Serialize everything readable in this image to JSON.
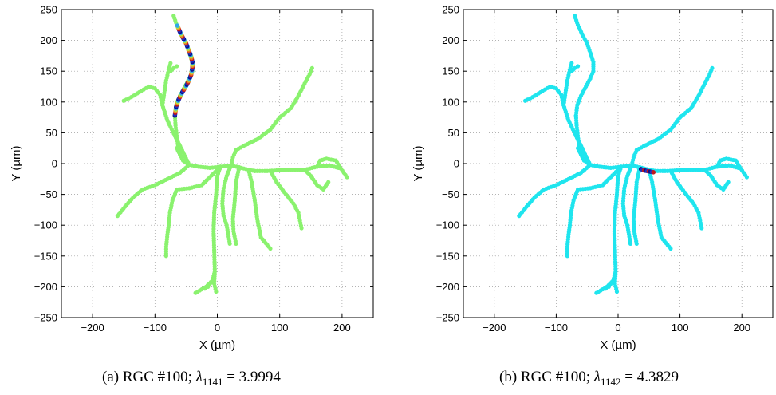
{
  "chart_data": [
    {
      "type": "scatter",
      "xlabel": "X (µm)",
      "ylabel": "Y (µm)",
      "xlim": [
        -250,
        250
      ],
      "ylim": [
        -250,
        250
      ],
      "xticks": [
        -200,
        -100,
        0,
        100,
        200
      ],
      "yticks": [
        -250,
        -200,
        -150,
        -100,
        -50,
        0,
        50,
        100,
        150,
        200,
        250
      ],
      "grid": true,
      "base_color": "#8af26e",
      "highlight_colors": [
        "#0d0d8a",
        "#1e2ec0",
        "#c01a1a",
        "#e8772a",
        "#b8e23a",
        "#2ea8e8"
      ],
      "caption": {
        "prefix": "(a)  RGC #100; ",
        "lambda": "λ",
        "sub": "1141",
        "rest": " = 3.9994"
      }
    },
    {
      "type": "scatter",
      "xlabel": "X (µm)",
      "ylabel": "Y (µm)",
      "xlim": [
        -250,
        250
      ],
      "ylim": [
        -250,
        250
      ],
      "xticks": [
        -200,
        -100,
        0,
        100,
        200
      ],
      "yticks": [
        -250,
        -200,
        -150,
        -100,
        -50,
        0,
        50,
        100,
        150,
        200,
        250
      ],
      "grid": true,
      "base_color": "#1fe5ee",
      "highlight_colors": [
        "#0d0d8a",
        "#1e2ec0",
        "#c01a1a"
      ],
      "caption": {
        "prefix": "(b)  RGC #100; ",
        "lambda": "λ",
        "sub": "1142",
        "rest": " = 4.3829"
      }
    }
  ],
  "neuron": {
    "branches": [
      [
        [
          -45,
          -2
        ],
        [
          -30,
          -5
        ],
        [
          -12,
          -7
        ],
        [
          5,
          -5
        ],
        [
          22,
          -3
        ],
        [
          35,
          -6
        ],
        [
          50,
          -10
        ],
        [
          60,
          -12
        ]
      ],
      [
        [
          -45,
          -2
        ],
        [
          -60,
          -15
        ],
        [
          -80,
          -25
        ],
        [
          -100,
          -35
        ],
        [
          -120,
          -42
        ],
        [
          -135,
          -55
        ],
        [
          -148,
          -70
        ],
        [
          -160,
          -85
        ]
      ],
      [
        [
          -45,
          -2
        ],
        [
          -55,
          5
        ],
        [
          -60,
          15
        ],
        [
          -63,
          28
        ],
        [
          -65,
          45
        ],
        [
          -67,
          62
        ],
        [
          -68,
          78
        ]
      ],
      [
        [
          -68,
          78
        ],
        [
          -66,
          95
        ],
        [
          -60,
          110
        ],
        [
          -52,
          125
        ],
        [
          -45,
          138
        ],
        [
          -40,
          150
        ],
        [
          -40,
          165
        ],
        [
          -45,
          180
        ],
        [
          -50,
          195
        ],
        [
          -58,
          210
        ],
        [
          -65,
          225
        ],
        [
          -70,
          240
        ]
      ],
      [
        [
          -45,
          -2
        ],
        [
          -52,
          12
        ],
        [
          -58,
          25
        ],
        [
          -68,
          45
        ],
        [
          -80,
          70
        ],
        [
          -88,
          95
        ],
        [
          -92,
          112
        ],
        [
          -100,
          122
        ],
        [
          -110,
          125
        ],
        [
          -122,
          118
        ],
        [
          -138,
          108
        ],
        [
          -150,
          102
        ]
      ],
      [
        [
          -88,
          95
        ],
        [
          -85,
          115
        ],
        [
          -82,
          135
        ],
        [
          -78,
          152
        ],
        [
          -75,
          163
        ]
      ],
      [
        [
          -78,
          152
        ],
        [
          -75,
          150
        ],
        [
          -70,
          155
        ],
        [
          -65,
          158
        ]
      ],
      [
        [
          -60,
          15
        ],
        [
          -65,
          25
        ]
      ],
      [
        [
          22,
          -3
        ],
        [
          25,
          10
        ],
        [
          30,
          22
        ],
        [
          45,
          30
        ],
        [
          65,
          40
        ],
        [
          85,
          55
        ],
        [
          100,
          75
        ],
        [
          118,
          90
        ],
        [
          130,
          110
        ],
        [
          140,
          130
        ],
        [
          148,
          145
        ],
        [
          152,
          155
        ]
      ],
      [
        [
          22,
          -3
        ],
        [
          15,
          -20
        ],
        [
          10,
          -40
        ],
        [
          8,
          -65
        ],
        [
          10,
          -85
        ],
        [
          15,
          -100
        ],
        [
          20,
          -130
        ]
      ],
      [
        [
          5,
          -5
        ],
        [
          -12,
          -22
        ],
        [
          -25,
          -35
        ],
        [
          -45,
          -40
        ],
        [
          -65,
          -42
        ],
        [
          -72,
          -60
        ],
        [
          -76,
          -80
        ],
        [
          -78,
          -100
        ],
        [
          -80,
          -115
        ],
        [
          -82,
          -135
        ],
        [
          -82,
          -150
        ]
      ],
      [
        [
          5,
          -5
        ],
        [
          0,
          -20
        ],
        [
          -2,
          -50
        ],
        [
          -5,
          -80
        ],
        [
          -6,
          -110
        ],
        [
          -5,
          -140
        ],
        [
          -4,
          -175
        ],
        [
          -8,
          -190
        ],
        [
          -15,
          -200
        ],
        [
          -20,
          -203
        ]
      ],
      [
        [
          -4,
          -175
        ],
        [
          -5,
          -195
        ],
        [
          -2,
          -208
        ]
      ],
      [
        [
          -8,
          -190
        ],
        [
          -18,
          -200
        ],
        [
          -35,
          -210
        ]
      ],
      [
        [
          35,
          -6
        ],
        [
          30,
          -30
        ],
        [
          28,
          -60
        ],
        [
          25,
          -90
        ],
        [
          26,
          -110
        ],
        [
          30,
          -130
        ]
      ],
      [
        [
          50,
          -10
        ],
        [
          55,
          -30
        ],
        [
          60,
          -60
        ],
        [
          64,
          -90
        ],
        [
          70,
          -120
        ],
        [
          85,
          -138
        ]
      ],
      [
        [
          60,
          -12
        ],
        [
          80,
          -12
        ],
        [
          110,
          -10
        ],
        [
          140,
          -10
        ],
        [
          160,
          -5
        ],
        [
          180,
          -3
        ],
        [
          198,
          -8
        ],
        [
          208,
          -22
        ]
      ],
      [
        [
          140,
          -10
        ],
        [
          150,
          -20
        ],
        [
          160,
          -35
        ],
        [
          170,
          -42
        ],
        [
          178,
          -30
        ]
      ],
      [
        [
          85,
          -12
        ],
        [
          95,
          -30
        ],
        [
          110,
          -50
        ],
        [
          122,
          -65
        ],
        [
          130,
          -80
        ],
        [
          135,
          -105
        ]
      ],
      [
        [
          160,
          -5
        ],
        [
          165,
          5
        ],
        [
          175,
          8
        ],
        [
          190,
          5
        ],
        [
          198,
          -8
        ]
      ]
    ],
    "highlight_a": [
      [
        -68,
        78
      ],
      [
        -66,
        92
      ],
      [
        -62,
        104
      ],
      [
        -56,
        116
      ],
      [
        -50,
        126
      ],
      [
        -46,
        134
      ],
      [
        -42,
        144
      ],
      [
        -40,
        155
      ],
      [
        -40,
        165
      ],
      [
        -42,
        174
      ],
      [
        -46,
        184
      ],
      [
        -50,
        195
      ],
      [
        -55,
        204
      ],
      [
        -60,
        214
      ],
      [
        -64,
        224
      ]
    ],
    "highlight_b": [
      [
        37,
        -9
      ],
      [
        42,
        -11
      ],
      [
        47,
        -12
      ],
      [
        52,
        -13
      ],
      [
        57,
        -14
      ]
    ]
  }
}
